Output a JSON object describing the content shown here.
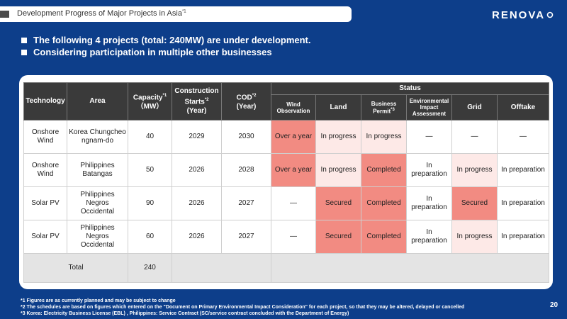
{
  "header": {
    "title": "Development Progress of Major Projects in Asia",
    "title_note": "*1",
    "logo": "RENOVA"
  },
  "bullets": [
    "The following 4 projects (total: 240MW) are under development.",
    "Considering participation in multiple other businesses"
  ],
  "table": {
    "col_technology": "Technology",
    "col_area": "Area",
    "col_capacity": "Capacity",
    "col_capacity_note": "*1",
    "col_capacity_unit": "（MW）",
    "col_construction": "Construction Starts",
    "col_construction_note": "*2",
    "col_construction_unit": "(Year)",
    "col_cod": "COD",
    "col_cod_note": "*2",
    "col_cod_unit": "(Year)",
    "status_header": "Status",
    "status_wind_line1": "Wind",
    "status_wind_line2": "Observation",
    "status_land": "Land",
    "status_business_line1": "Business",
    "status_business_line2": "Permit",
    "status_business_note": "*3",
    "status_env_line1": "Environmental",
    "status_env_line2": "Impact",
    "status_env_line3": "Assessment",
    "status_grid": "Grid",
    "status_offtake": "Offtake",
    "rows": [
      {
        "technology": "Onshore Wind",
        "area": "Korea Chungcheongnam-do",
        "capacity": "40",
        "construction": "2029",
        "cod": "2030",
        "wind": "Over a year",
        "land": "In progress",
        "business": "In progress",
        "env": "—",
        "grid": "—",
        "offtake": "—"
      },
      {
        "technology": "Onshore Wind",
        "area": "Philippines Batangas",
        "capacity": "50",
        "construction": "2026",
        "cod": "2028",
        "wind": "Over a year",
        "land": "In progress",
        "business": "Completed",
        "env": "In preparation",
        "grid": "In progress",
        "offtake": "In preparation"
      },
      {
        "technology": "Solar PV",
        "area": "Philippines Negros Occidental",
        "capacity": "90",
        "construction": "2026",
        "cod": "2027",
        "wind": "—",
        "land": "Secured",
        "business": "Completed",
        "env": "In preparation",
        "grid": "Secured",
        "offtake": "In preparation"
      },
      {
        "technology": "Solar PV",
        "area": "Philippines Negros Occidental",
        "capacity": "60",
        "construction": "2026",
        "cod": "2027",
        "wind": "—",
        "land": "Secured",
        "business": "Completed",
        "env": "In preparation",
        "grid": "In progress",
        "offtake": "In preparation"
      }
    ],
    "total_label": "Total",
    "total_capacity": "240"
  },
  "footnotes": [
    "*1 Figures are as currently planned and may be subject to change",
    "*2 The schedules are based on figures which entered on the \"Document on Primary Environmental Impact Consideration\" for each project, so that they may be altered, delayed or cancelled",
    "*3 Korea: Electricity Business License (EBL) , Philippines: Service Contract (SC/service contract concluded with the Department of Energy)"
  ],
  "page_number": "20",
  "colors": {
    "background": "#0d3e8a",
    "header_cell": "#3a3a3a",
    "status_strong": "#f28b82",
    "status_light": "#fde9e7",
    "total_row": "#e4e4e4"
  }
}
